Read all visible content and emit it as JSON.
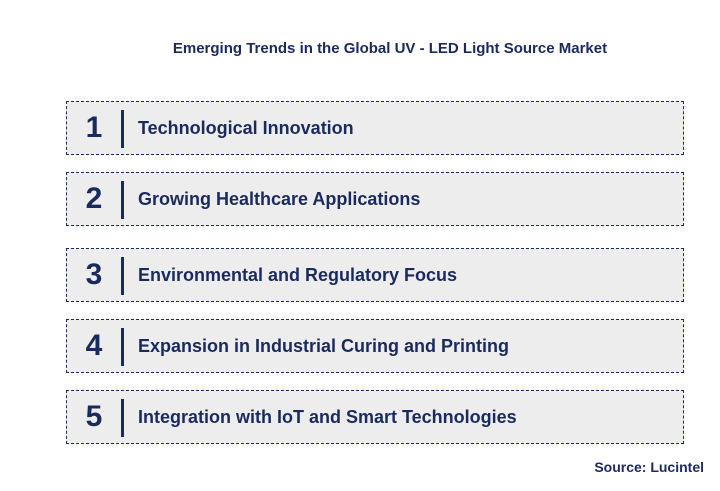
{
  "title": "Emerging Trends in the Global UV - LED Light Source Market",
  "items": [
    {
      "number": "1",
      "label": "Technological Innovation"
    },
    {
      "number": "2",
      "label": "Growing Healthcare Applications"
    },
    {
      "number": "3",
      "label": "Environmental and Regulatory Focus"
    },
    {
      "number": "4",
      "label": "Expansion in Industrial Curing and Printing"
    },
    {
      "number": "5",
      "label": "Integration with IoT and Smart Technologies"
    }
  ],
  "source": "Source: Lucintel"
}
